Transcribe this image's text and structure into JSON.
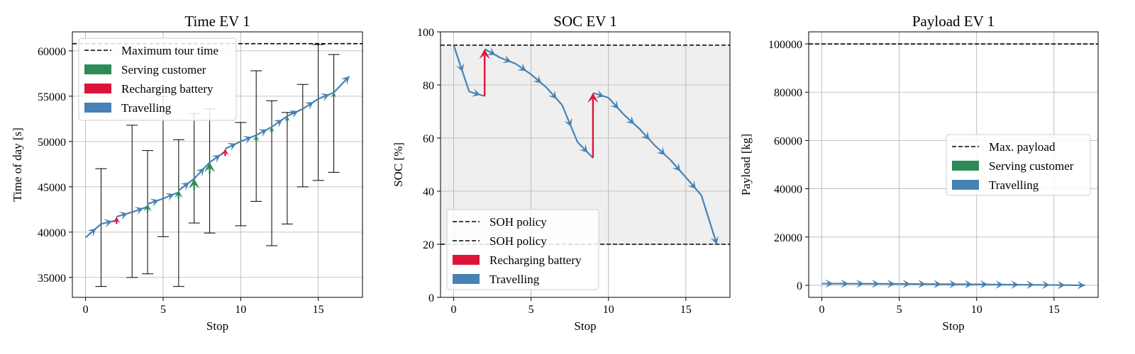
{
  "chart_data": [
    {
      "type": "line",
      "title": "Time EV 1",
      "xlabel": "Stop",
      "ylabel": "Time of day [s]",
      "xlim": [
        -0.85,
        17.85
      ],
      "ylim": [
        32800,
        62100
      ],
      "xticks": [
        0,
        5,
        10,
        15
      ],
      "yticks": [
        35000,
        40000,
        45000,
        50000,
        55000,
        60000
      ],
      "grid": true,
      "legend_position": "top-left",
      "legend": {
        "entries": [
          {
            "label": "Maximum tour time",
            "kind": "dashed",
            "color": "#000000"
          },
          {
            "label": "Serving customer",
            "kind": "patch",
            "color": "#2e8b57"
          },
          {
            "label": "Recharging battery",
            "kind": "patch",
            "color": "#dc143c"
          },
          {
            "label": "Travelling",
            "kind": "patch",
            "color": "#4682b4"
          }
        ]
      },
      "hlines": [
        {
          "y": 60800,
          "style": "dashed",
          "label": "Maximum tour time"
        }
      ],
      "series": [
        {
          "name": "Travelling",
          "color": "#4682b4",
          "points": [
            [
              0,
              39400
            ],
            [
              1,
              40900
            ],
            [
              2,
              41300
            ],
            [
              2,
              41700
            ],
            [
              3,
              42200
            ],
            [
              4,
              42800
            ],
            [
              4,
              43100
            ],
            [
              5,
              43700
            ],
            [
              6,
              44400
            ],
            [
              6,
              44600
            ],
            [
              7,
              45900
            ],
            [
              8,
              47700
            ],
            [
              9,
              48900
            ],
            [
              9,
              49200
            ],
            [
              10,
              50000
            ],
            [
              11,
              50700
            ],
            [
              12,
              51600
            ],
            [
              13,
              52800
            ],
            [
              14,
              53600
            ],
            [
              15,
              54700
            ],
            [
              16,
              55400
            ],
            [
              17,
              57200
            ]
          ]
        }
      ],
      "segments": [
        {
          "name": "Recharging battery",
          "color": "#dc143c",
          "x": 2,
          "from": 40900,
          "to": 41700
        },
        {
          "name": "Serving customer",
          "color": "#2e8b57",
          "x": 4,
          "from": 42200,
          "to": 43100
        },
        {
          "name": "Serving customer",
          "color": "#2e8b57",
          "x": 6,
          "from": 43700,
          "to": 44600
        },
        {
          "name": "Serving customer",
          "color": "#2e8b57",
          "x": 7,
          "from": 44600,
          "to": 45900
        },
        {
          "name": "Serving customer",
          "color": "#2e8b57",
          "x": 8,
          "from": 46400,
          "to": 47700
        },
        {
          "name": "Recharging battery",
          "color": "#dc143c",
          "x": 9,
          "from": 48400,
          "to": 49200
        },
        {
          "name": "Serving customer",
          "color": "#2e8b57",
          "x": 11,
          "from": 50000,
          "to": 50700
        },
        {
          "name": "Serving customer",
          "color": "#2e8b57",
          "x": 12,
          "from": 51000,
          "to": 51600
        },
        {
          "name": "Serving customer",
          "color": "#2e8b57",
          "x": 13,
          "from": 52200,
          "to": 52800
        },
        {
          "name": "Serving customer",
          "color": "#2e8b57",
          "x": 16,
          "from": 55000,
          "to": 55400
        }
      ],
      "error_bars": [
        {
          "x": 1,
          "low": 34000,
          "high": 47000
        },
        {
          "x": 3,
          "low": 35000,
          "high": 51800
        },
        {
          "x": 4,
          "low": 35400,
          "high": 49000
        },
        {
          "x": 5,
          "low": 39500,
          "high": 55000
        },
        {
          "x": 6,
          "low": 34000,
          "high": 50200
        },
        {
          "x": 7,
          "low": 41000,
          "high": 53100
        },
        {
          "x": 8,
          "low": 39900,
          "high": 53600
        },
        {
          "x": 10,
          "low": 40700,
          "high": 52100
        },
        {
          "x": 11,
          "low": 43400,
          "high": 57800
        },
        {
          "x": 12,
          "low": 38500,
          "high": 54500
        },
        {
          "x": 13,
          "low": 40900,
          "high": 53200
        },
        {
          "x": 14,
          "low": 45000,
          "high": 56300
        },
        {
          "x": 15,
          "low": 45700,
          "high": 60700
        },
        {
          "x": 16,
          "low": 46600,
          "high": 59600
        }
      ]
    },
    {
      "type": "line",
      "title": "SOC EV 1",
      "xlabel": "Stop",
      "ylabel": "SOC [%]",
      "xlim": [
        -0.85,
        17.85
      ],
      "ylim": [
        0,
        100
      ],
      "xticks": [
        0,
        5,
        10,
        15
      ],
      "yticks": [
        0,
        20,
        40,
        60,
        80,
        100
      ],
      "grid": true,
      "legend_position": "bottom-left",
      "legend": {
        "entries": [
          {
            "label": "SOH policy",
            "kind": "dashed",
            "color": "#000000"
          },
          {
            "label": "SOH policy",
            "kind": "dashed",
            "color": "#000000"
          },
          {
            "label": "Recharging battery",
            "kind": "patch",
            "color": "#dc143c"
          },
          {
            "label": "Travelling",
            "kind": "patch",
            "color": "#4682b4"
          }
        ]
      },
      "band": {
        "from": 20,
        "to": 95,
        "color": "#efefef"
      },
      "hlines": [
        {
          "y": 95,
          "style": "dashed",
          "label": "SOH policy"
        },
        {
          "y": 20,
          "style": "dashed",
          "label": "SOH policy"
        }
      ],
      "series": [
        {
          "name": "Travelling",
          "color": "#4682b4",
          "points": [
            [
              0,
              95
            ],
            [
              1,
              77.5
            ],
            [
              2,
              75.8
            ],
            [
              2,
              93.5
            ],
            [
              3,
              90.3
            ],
            [
              4,
              88
            ],
            [
              5,
              84
            ],
            [
              6,
              79
            ],
            [
              7,
              72.5
            ],
            [
              8,
              58.5
            ],
            [
              9,
              52.5
            ],
            [
              9,
              77
            ],
            [
              10,
              75.2
            ],
            [
              11,
              68.8
            ],
            [
              12,
              63.5
            ],
            [
              13,
              57.2
            ],
            [
              14,
              51.8
            ],
            [
              15,
              45.2
            ],
            [
              16,
              38.5
            ],
            [
              17,
              20
            ]
          ]
        }
      ],
      "segments": [
        {
          "name": "Recharging battery",
          "color": "#dc143c",
          "x": 2,
          "from": 75.8,
          "to": 93.5
        },
        {
          "name": "Recharging battery",
          "color": "#dc143c",
          "x": 9,
          "from": 52.5,
          "to": 77
        }
      ]
    },
    {
      "type": "line",
      "title": "Payload EV 1",
      "xlabel": "Stop",
      "ylabel": "Payload [kg]",
      "xlim": [
        -0.85,
        17.85
      ],
      "ylim": [
        -5000,
        105000
      ],
      "xticks": [
        0,
        5,
        10,
        15
      ],
      "yticks": [
        0,
        20000,
        40000,
        60000,
        80000,
        100000
      ],
      "grid": true,
      "legend_position": "center-right",
      "legend": {
        "entries": [
          {
            "label": "Max. payload",
            "kind": "dashed",
            "color": "#000000"
          },
          {
            "label": "Serving customer",
            "kind": "patch",
            "color": "#2e8b57"
          },
          {
            "label": "Travelling",
            "kind": "patch",
            "color": "#4682b4"
          }
        ]
      },
      "hlines": [
        {
          "y": 100000,
          "style": "dashed",
          "label": "Max. payload"
        }
      ],
      "series": [
        {
          "name": "Travelling",
          "color": "#4682b4",
          "points": [
            [
              0,
              700
            ],
            [
              1,
              680
            ],
            [
              2,
              660
            ],
            [
              3,
              640
            ],
            [
              4,
              610
            ],
            [
              5,
              580
            ],
            [
              6,
              540
            ],
            [
              7,
              500
            ],
            [
              8,
              460
            ],
            [
              9,
              420
            ],
            [
              10,
              380
            ],
            [
              11,
              330
            ],
            [
              12,
              280
            ],
            [
              13,
              230
            ],
            [
              14,
              180
            ],
            [
              15,
              120
            ],
            [
              16,
              60
            ],
            [
              17,
              0
            ]
          ]
        }
      ],
      "segments": []
    }
  ]
}
